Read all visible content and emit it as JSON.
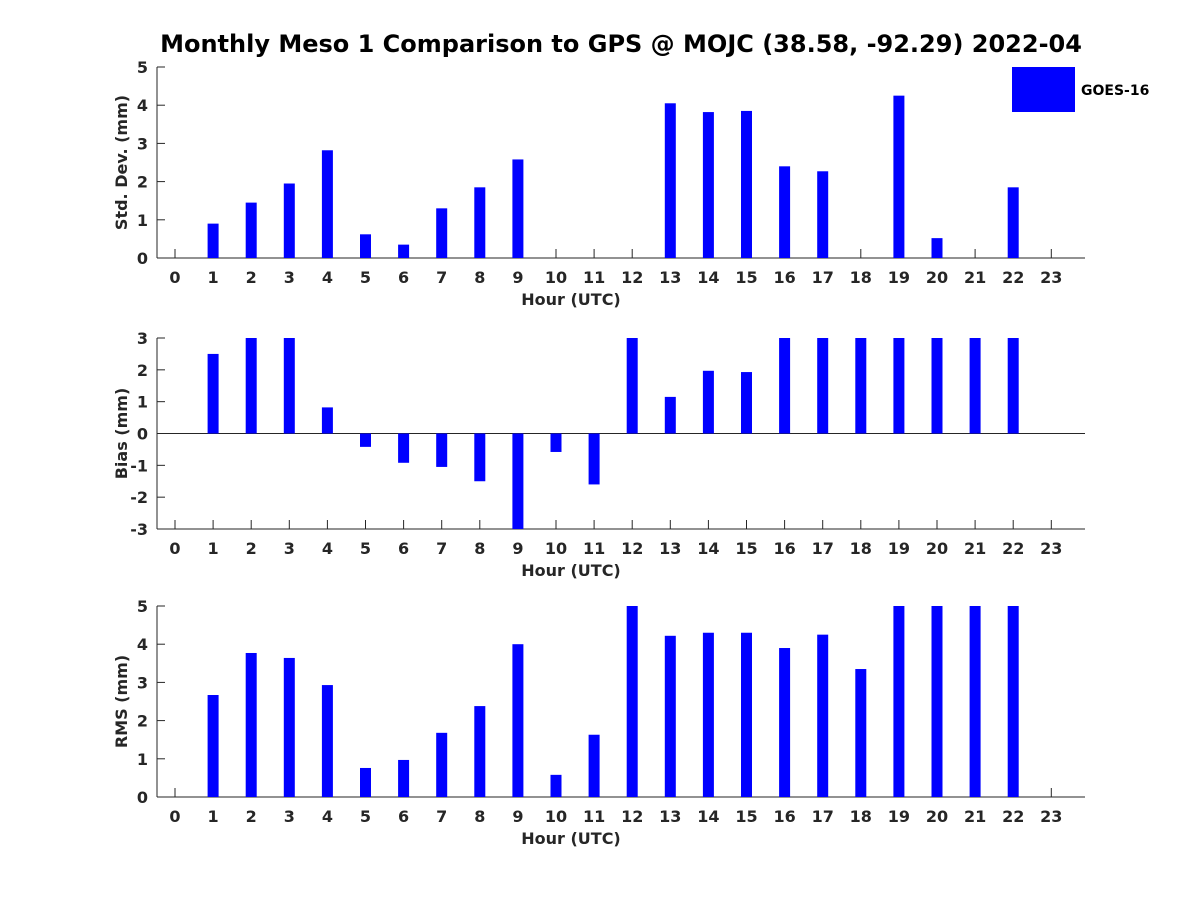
{
  "title": "Monthly Meso 1 Comparison to GPS @ MOJC (38.58, -92.29) 2022-04",
  "legend": {
    "label": "GOES-16",
    "color": "#0000ff"
  },
  "chart_data": [
    {
      "type": "bar",
      "name": "std-dev",
      "title": "",
      "xlabel": "Hour (UTC)",
      "ylabel": "Std. Dev. (mm)",
      "categories": [
        "0",
        "1",
        "2",
        "3",
        "4",
        "5",
        "6",
        "7",
        "8",
        "9",
        "10",
        "11",
        "12",
        "13",
        "14",
        "15",
        "16",
        "17",
        "18",
        "19",
        "20",
        "21",
        "22",
        "23"
      ],
      "values": [
        null,
        0.9,
        1.45,
        1.95,
        2.82,
        0.62,
        0.35,
        1.3,
        1.85,
        2.58,
        null,
        null,
        null,
        4.05,
        3.82,
        3.85,
        2.4,
        2.27,
        null,
        4.25,
        0.52,
        null,
        1.85,
        null
      ],
      "ylim": [
        0,
        5
      ],
      "yticks": [
        0,
        1,
        2,
        3,
        4,
        5
      ],
      "series_color": "#0000ff"
    },
    {
      "type": "bar",
      "name": "bias",
      "title": "",
      "xlabel": "Hour (UTC)",
      "ylabel": "Bias (mm)",
      "categories": [
        "0",
        "1",
        "2",
        "3",
        "4",
        "5",
        "6",
        "7",
        "8",
        "9",
        "10",
        "11",
        "12",
        "13",
        "14",
        "15",
        "16",
        "17",
        "18",
        "19",
        "20",
        "21",
        "22",
        "23"
      ],
      "values": [
        null,
        2.5,
        3.0,
        3.0,
        0.82,
        -0.42,
        -0.92,
        -1.05,
        -1.5,
        -3.0,
        -0.58,
        -1.6,
        3.0,
        1.15,
        1.97,
        1.93,
        3.0,
        3.0,
        3.0,
        3.0,
        3.0,
        3.0,
        3.0,
        null
      ],
      "ylim": [
        -3,
        3
      ],
      "yticks": [
        -3,
        -2,
        -1,
        0,
        1,
        2,
        3
      ],
      "zero_line": true,
      "series_color": "#0000ff"
    },
    {
      "type": "bar",
      "name": "rms",
      "title": "",
      "xlabel": "Hour (UTC)",
      "ylabel": "RMS (mm)",
      "categories": [
        "0",
        "1",
        "2",
        "3",
        "4",
        "5",
        "6",
        "7",
        "8",
        "9",
        "10",
        "11",
        "12",
        "13",
        "14",
        "15",
        "16",
        "17",
        "18",
        "19",
        "20",
        "21",
        "22",
        "23"
      ],
      "values": [
        null,
        2.67,
        3.77,
        3.64,
        2.93,
        0.76,
        0.97,
        1.68,
        2.38,
        4.0,
        0.58,
        1.63,
        5.0,
        4.22,
        4.3,
        4.3,
        3.9,
        4.25,
        3.35,
        5.0,
        5.0,
        5.0,
        5.0,
        null
      ],
      "ylim": [
        0,
        5
      ],
      "yticks": [
        0,
        1,
        2,
        3,
        4,
        5
      ],
      "series_color": "#0000ff"
    }
  ]
}
